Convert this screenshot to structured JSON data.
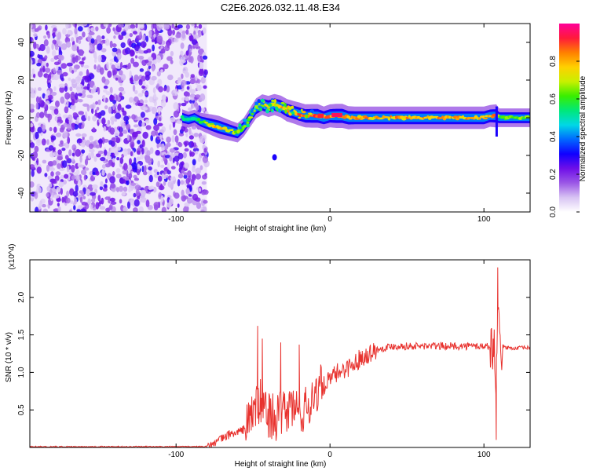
{
  "title": "C2E6.2026.032.11.48.E34",
  "chart_data": [
    {
      "type": "heatmap",
      "title": "C2E6.2026.032.11.48.E34",
      "xlabel": "Height of straight line (km)",
      "ylabel": "Frequency (Hz)",
      "xlim": [
        -195,
        130
      ],
      "ylim": [
        -50,
        50
      ],
      "x_ticks": [
        -100,
        0,
        100
      ],
      "x_tick_labels": [
        "-100",
        "0",
        "100"
      ],
      "y_ticks": [
        -40,
        -20,
        0,
        20,
        40
      ],
      "y_tick_labels": [
        "-40",
        "-20",
        "0",
        "20",
        "40"
      ],
      "colorbar": {
        "label": "Normalized spectral amplitude",
        "range": [
          0,
          1
        ],
        "ticks": [
          0.0,
          0.2,
          0.4,
          0.6,
          0.8
        ],
        "tick_labels": [
          "0.0",
          "0.2",
          "0.4",
          "0.6",
          "0.8"
        ],
        "colormap": [
          "#ffffff",
          "#d8c3f3",
          "#9b57e6",
          "#6f0fe8",
          "#1000ff",
          "#0068ff",
          "#00d8e6",
          "#00e87a",
          "#38ee00",
          "#c8f000",
          "#ffd000",
          "#ff7f00",
          "#ff1a3a",
          "#ff0099"
        ]
      },
      "noise_region_x": [
        -195,
        -80
      ],
      "ridge_x": [
        -96,
        -92,
        -88,
        -84,
        -80,
        -76,
        -72,
        -68,
        -64,
        -60,
        -56,
        -52,
        -48,
        -44,
        -40,
        -36,
        -32,
        -28,
        -24,
        -20,
        -16,
        -12,
        -8,
        -4,
        0,
        4,
        8,
        12,
        16,
        20,
        30,
        40,
        50,
        60,
        70,
        80,
        90,
        100,
        104,
        108,
        110,
        114,
        120,
        126,
        130
      ],
      "ridge_freq_hz": [
        0,
        -1,
        0,
        -2,
        -3,
        -4,
        -5,
        -6,
        -7,
        -8,
        -5,
        0,
        5,
        7,
        6,
        7,
        6,
        4,
        3,
        2,
        1,
        1,
        1,
        0,
        1,
        1,
        1,
        0,
        0,
        0,
        0,
        0,
        0,
        0,
        0,
        0,
        0,
        0,
        1,
        1,
        0,
        0,
        0,
        0,
        0
      ],
      "ridge_amplitude": [
        0.35,
        0.3,
        0.3,
        0.4,
        0.55,
        0.7,
        0.8,
        0.7,
        0.6,
        0.55,
        0.5,
        0.55,
        0.6,
        0.65,
        0.7,
        0.7,
        0.75,
        0.8,
        0.8,
        0.85,
        0.85,
        0.9,
        0.9,
        0.8,
        0.85,
        0.95,
        0.95,
        0.85,
        0.8,
        0.8,
        0.8,
        0.8,
        0.8,
        0.8,
        0.8,
        0.8,
        0.8,
        0.8,
        0.75,
        0.85,
        0.5,
        0.5,
        0.5,
        0.5,
        0.5
      ],
      "detached_blob": {
        "x": -36,
        "freq_hz": -21,
        "amplitude": 0.3
      }
    },
    {
      "type": "line",
      "xlabel": "Height of straight line (km)",
      "ylabel": "SNR (10 * v/v)",
      "y_multiplier": "(x10^4)",
      "xlim": [
        -195,
        130
      ],
      "ylim": [
        0,
        25000
      ],
      "x_ticks": [
        -100,
        0,
        100
      ],
      "x_tick_labels": [
        "-100",
        "0",
        "100"
      ],
      "y_ticks": [
        5000,
        10000,
        15000,
        20000
      ],
      "y_tick_labels": [
        "0.5",
        "1.0",
        "1.5",
        "2.0"
      ],
      "series": [
        {
          "name": "SNR",
          "color": "#e8322e",
          "x": [
            -195,
            -160,
            -120,
            -90,
            -80,
            -75,
            -70,
            -65,
            -60,
            -55,
            -50,
            -45,
            -40,
            -35,
            -30,
            -25,
            -20,
            -15,
            -10,
            -5,
            0,
            5,
            10,
            15,
            20,
            25,
            30,
            40,
            50,
            60,
            70,
            80,
            90,
            100,
            104,
            107,
            108,
            109,
            110,
            111,
            112,
            115,
            120,
            125,
            130
          ],
          "y": [
            100,
            100,
            100,
            100,
            150,
            500,
            1200,
            1800,
            2000,
            2500,
            5000,
            6000,
            4500,
            4000,
            4500,
            5500,
            4800,
            5000,
            7500,
            8000,
            9000,
            10000,
            10500,
            11000,
            12000,
            12500,
            13000,
            13500,
            13500,
            13500,
            13500,
            13500,
            13500,
            13500,
            13500,
            13000,
            9000,
            20000,
            14000,
            12500,
            13500,
            13300,
            13200,
            13300,
            13300
          ],
          "peaks": [
            {
              "x": -47,
              "y": 16200
            },
            {
              "x": -44,
              "y": 14500
            },
            {
              "x": -32,
              "y": 14000
            },
            {
              "x": -20,
              "y": 13700
            },
            {
              "x": 108,
              "y": 1000
            },
            {
              "x": 109,
              "y": 24000
            }
          ]
        }
      ]
    }
  ]
}
